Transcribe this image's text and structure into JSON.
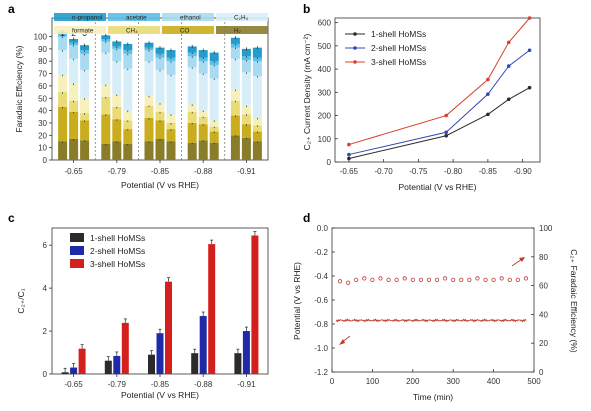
{
  "chart_data": [
    {
      "panel": "a",
      "type": "bar",
      "stacked": true,
      "title": "",
      "xlabel": "Potential (V vs RHE)",
      "ylabel": "Faradaic Efficiency (%)",
      "categories": [
        "-0.65",
        "-0.79",
        "-0.85",
        "-0.88",
        "-0.91"
      ],
      "group_labels": [
        "1",
        "2",
        "3"
      ],
      "ylim": [
        0,
        115
      ],
      "yticks": [
        0,
        10,
        20,
        30,
        40,
        50,
        60,
        70,
        80,
        90,
        100
      ],
      "legend": "top",
      "series": [
        {
          "name": "H₂",
          "color": "#8a7d2a",
          "values": [
            [
              15,
              17,
              16
            ],
            [
              13,
              15,
              13
            ],
            [
              15,
              17,
              15
            ],
            [
              14,
              16,
              14
            ],
            [
              20,
              18,
              15
            ]
          ]
        },
        {
          "name": "CO",
          "color": "#c9ad1c",
          "values": [
            [
              28,
              22,
              16
            ],
            [
              24,
              18,
              12
            ],
            [
              19,
              15,
              10
            ],
            [
              16,
              13,
              9
            ],
            [
              16,
              11,
              8
            ]
          ]
        },
        {
          "name": "CH₄",
          "color": "#e9dc76",
          "values": [
            [
              12,
              9,
              6
            ],
            [
              14,
              10,
              7
            ],
            [
              10,
              7,
              5
            ],
            [
              9,
              6,
              4
            ],
            [
              12,
              8,
              5
            ]
          ]
        },
        {
          "name": "formate",
          "color": "#f6f0bc",
          "values": [
            [
              14,
              14,
              12
            ],
            [
              10,
              10,
              8
            ],
            [
              8,
              7,
              7
            ],
            [
              6,
              5,
              5
            ],
            [
              9,
              7,
              6
            ]
          ]
        },
        {
          "name": "C₂H₄",
          "color": "#d7eef9",
          "values": [
            [
              20,
              20,
              23
            ],
            [
              26,
              27,
              34
            ],
            [
              28,
              27,
              32
            ],
            [
              30,
              30,
              34
            ],
            [
              25,
              27,
              34
            ]
          ]
        },
        {
          "name": "ethanol",
          "color": "#a8dbf1",
          "values": [
            [
              11,
              11,
              13
            ],
            [
              9,
              10,
              12
            ],
            [
              9,
              10,
              11
            ],
            [
              9,
              10,
              11
            ],
            [
              9,
              10,
              12
            ]
          ]
        },
        {
          "name": "acetate",
          "color": "#5cbfe5",
          "values": [
            [
              2,
              2,
              3
            ],
            [
              2,
              2,
              3
            ],
            [
              2,
              3,
              3
            ],
            [
              3,
              3,
              3
            ],
            [
              3,
              3,
              3
            ]
          ]
        },
        {
          "name": "n-propanol",
          "color": "#239ccb",
          "values": [
            [
              2,
              3,
              4
            ],
            [
              3,
              4,
              5
            ],
            [
              4,
              5,
              6
            ],
            [
              5,
              6,
              7
            ],
            [
              5,
              6,
              8
            ]
          ]
        }
      ]
    },
    {
      "panel": "b",
      "type": "line",
      "title": "",
      "xlabel": "Potential (V vs RHE)",
      "ylabel": "C₂₊ Current Density (mA cm⁻²)",
      "x": [
        -0.65,
        -0.79,
        -0.85,
        -0.88,
        -0.91
      ],
      "xlim": [
        -0.63,
        -0.925
      ],
      "ylim": [
        0,
        620
      ],
      "xticks": [
        "-0.65",
        "-0.70",
        "-0.75",
        "-0.80",
        "-0.85",
        "-0.90"
      ],
      "xtick_values": [
        -0.65,
        -0.7,
        -0.75,
        -0.8,
        -0.85,
        -0.9
      ],
      "yticks": [
        0,
        100,
        200,
        300,
        400,
        500,
        600
      ],
      "legend": "top-left",
      "series": [
        {
          "name": "1-shell HoMSs",
          "color": "#2a2a2a",
          "marker": "cross",
          "values": [
            15,
            113,
            205,
            270,
            320
          ]
        },
        {
          "name": "2-shell HoMSs",
          "color": "#3548b0",
          "marker": "star",
          "values": [
            32,
            128,
            292,
            413,
            481
          ]
        },
        {
          "name": "3-shell HoMSs",
          "color": "#d9402e",
          "marker": "triangle",
          "values": [
            75,
            200,
            355,
            515,
            620
          ]
        }
      ]
    },
    {
      "panel": "c",
      "type": "bar",
      "title": "",
      "xlabel": "Potential (V vs RHE)",
      "ylabel": "C₂₊/C₁",
      "categories": [
        "-0.65",
        "-0.79",
        "-0.85",
        "-0.88",
        "-0.91"
      ],
      "ylim": [
        0,
        6.8
      ],
      "yticks": [
        0,
        2,
        4,
        6
      ],
      "legend": "top-left",
      "series": [
        {
          "name": "1-shell HoMSs",
          "color": "#2b2b2b",
          "values": [
            0.08,
            0.62,
            0.9,
            0.97,
            0.97
          ]
        },
        {
          "name": "2-shell HoMSs",
          "color": "#1e2aa8",
          "values": [
            0.3,
            0.84,
            1.9,
            2.7,
            2.0
          ]
        },
        {
          "name": "3-shell HoMSs",
          "color": "#d4201c",
          "values": [
            1.18,
            2.38,
            4.3,
            6.05,
            6.45
          ]
        }
      ]
    },
    {
      "panel": "d",
      "type": "scatter",
      "title": "",
      "xlabel": "Time (min)",
      "ylabel": "Potential (V vs RHE)",
      "y2label": "C₂₊ Faradaic Efficiency (%)",
      "xlim": [
        0,
        500
      ],
      "ylim": [
        -1.2,
        0
      ],
      "y2lim": [
        0,
        100
      ],
      "xticks": [
        0,
        100,
        200,
        300,
        400,
        500
      ],
      "yticks": [
        0.0,
        -0.2,
        -0.4,
        -0.6,
        -0.8,
        -1.0,
        -1.2
      ],
      "ytick_labels": [
        "0.0",
        "-0.2",
        "-0.4",
        "-0.6",
        "-0.8",
        "-1.0",
        "-1.2"
      ],
      "y2ticks": [
        0,
        20,
        40,
        60,
        80,
        100
      ],
      "series": [
        {
          "name": "Potential",
          "color": "#c0392b",
          "type": "line",
          "axis": "left",
          "mean": -0.77
        },
        {
          "name": "C₂₊ Faradaic Efficiency",
          "color": "#c0392b",
          "type": "scatter",
          "axis": "right",
          "x": [
            20,
            40,
            60,
            80,
            100,
            120,
            140,
            160,
            180,
            200,
            220,
            240,
            260,
            280,
            300,
            320,
            340,
            360,
            380,
            400,
            420,
            440,
            460,
            480
          ],
          "values": [
            63,
            62,
            64,
            65,
            64,
            65,
            64,
            64,
            65,
            64,
            64,
            64,
            64,
            65,
            64,
            64,
            64,
            65,
            64,
            64,
            65,
            64,
            64,
            65
          ]
        }
      ]
    }
  ]
}
